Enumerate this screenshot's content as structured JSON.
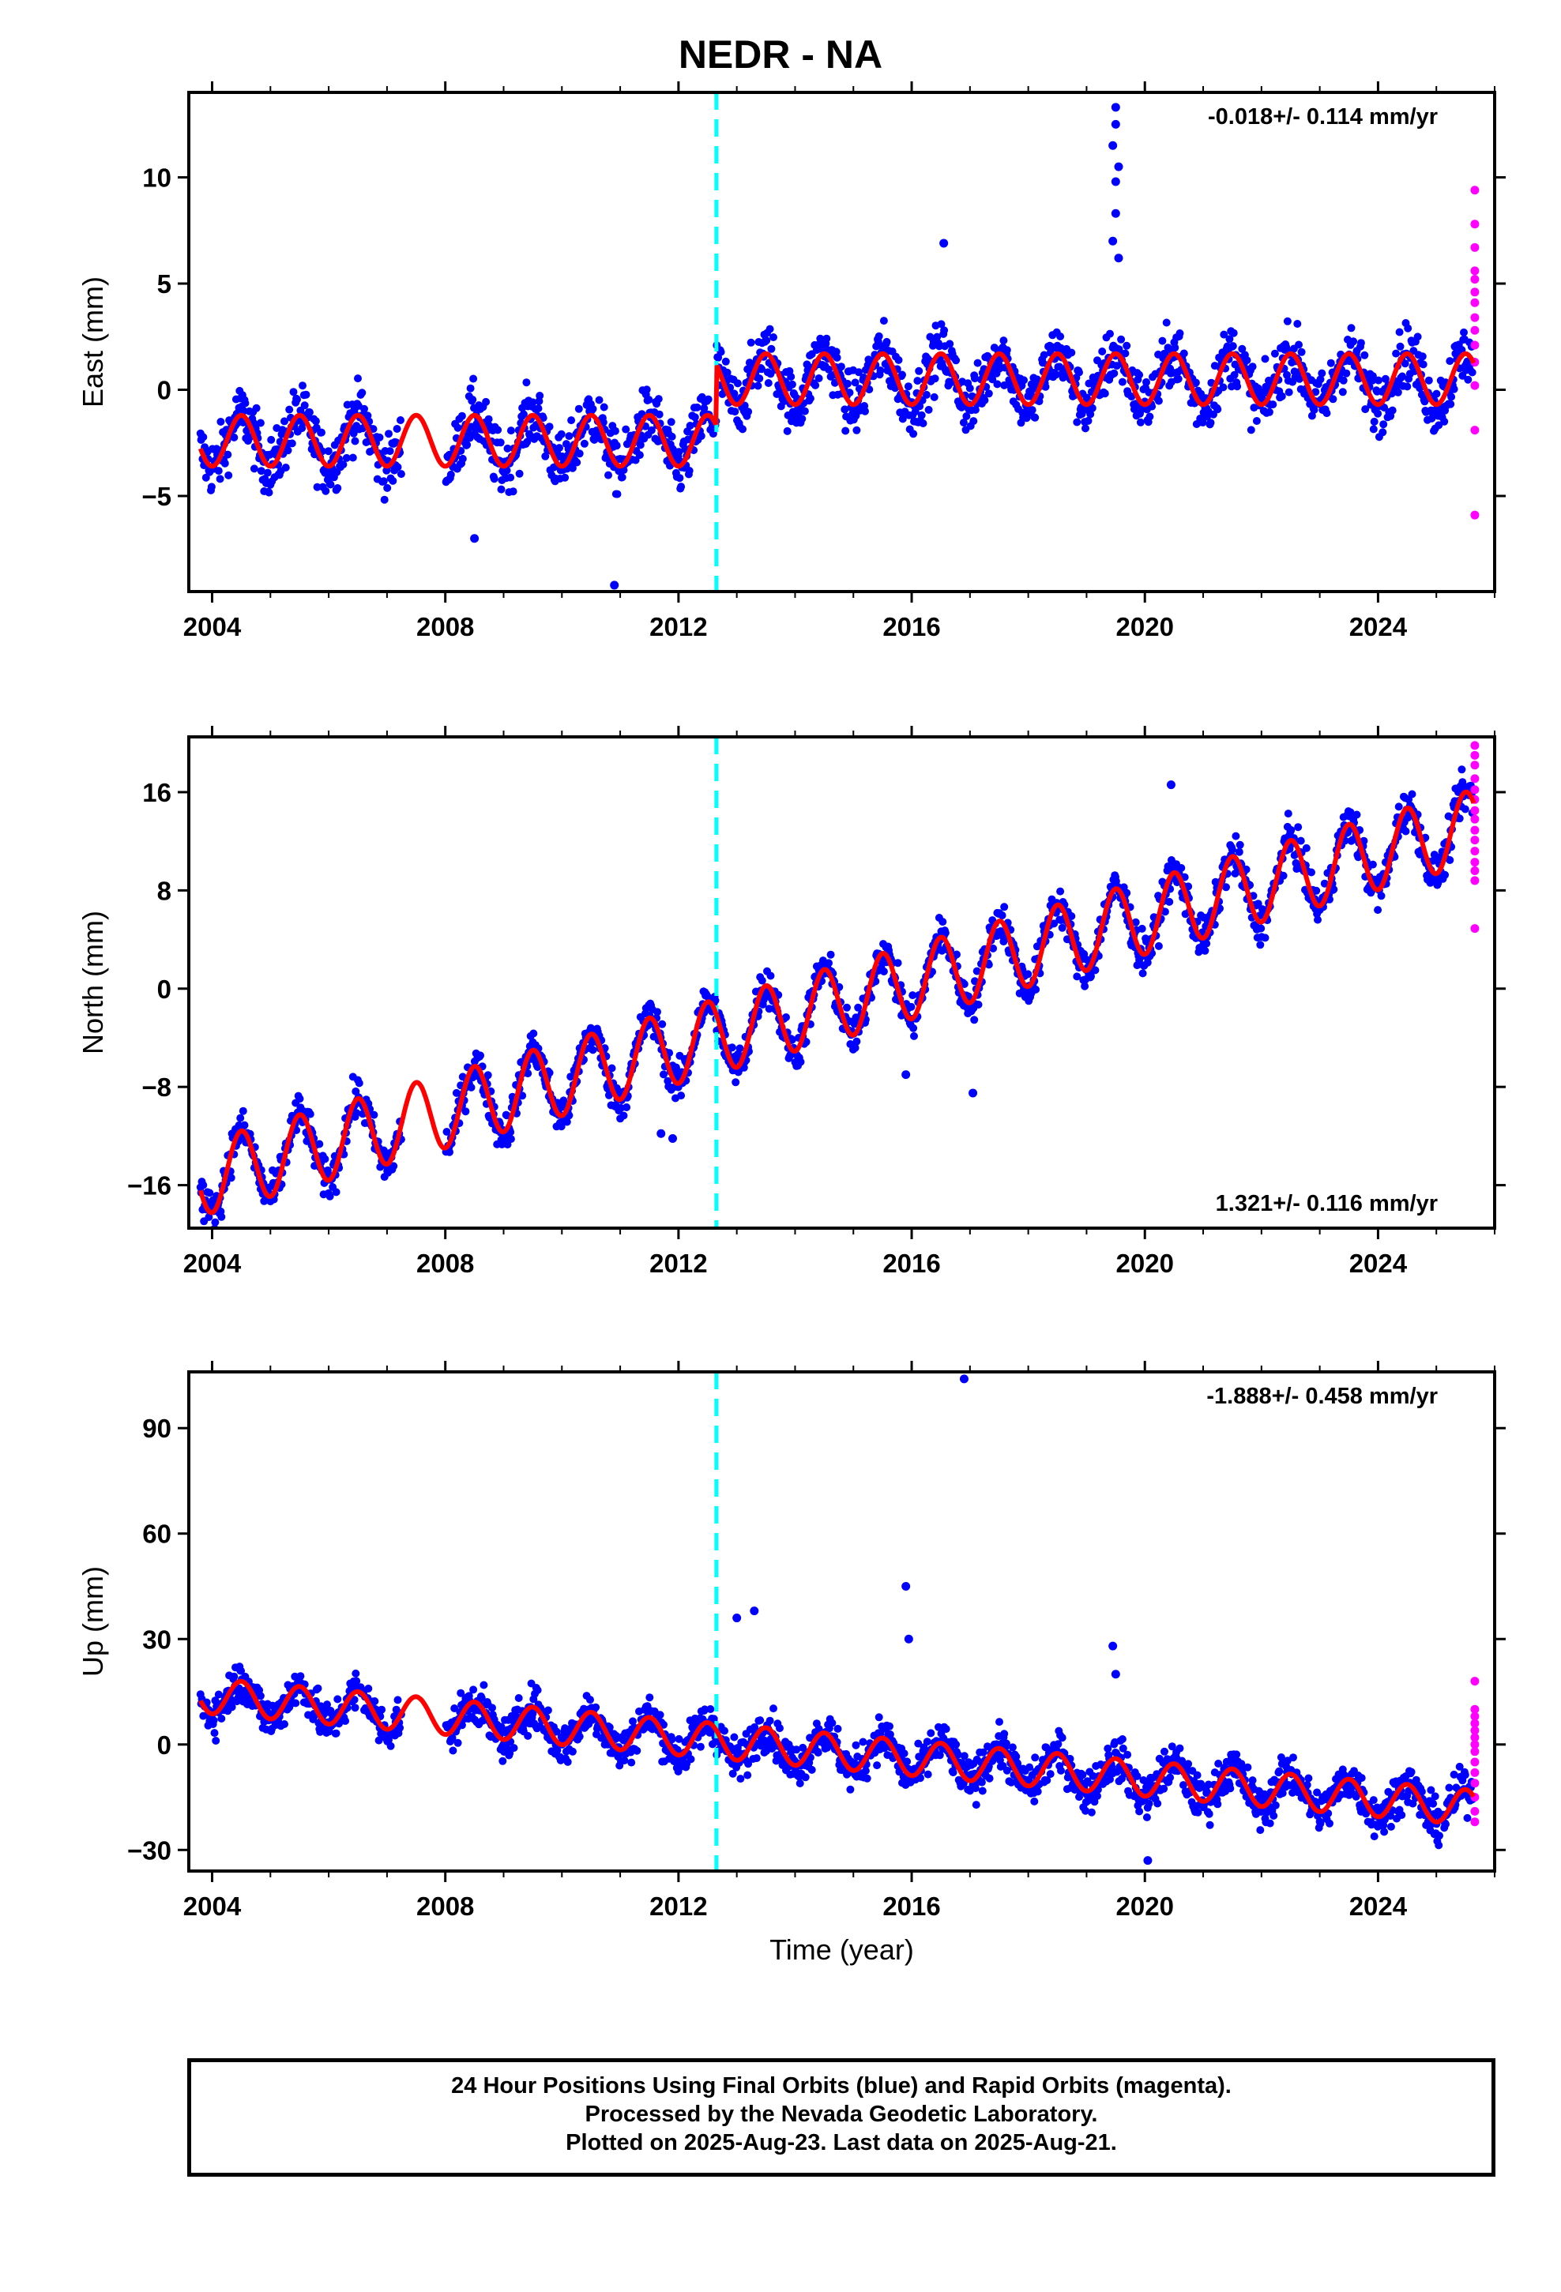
{
  "title": "NEDR - NA",
  "footer": {
    "line1": "24 Hour Positions Using Final Orbits (blue) and Rapid Orbits (magenta).",
    "line2": "Processed by the Nevada Geodetic Laboratory.",
    "line3": "Plotted on 2025-Aug-23. Last data on 2025-Aug-21."
  },
  "colors": {
    "final_orbits": "#0000ff",
    "rapid_orbits": "#ff00ff",
    "model_fit": "#ff0000",
    "offset_marker": "#00ffff"
  },
  "chart_data": [
    {
      "type": "scatter",
      "component": "east",
      "ylabel": "East (mm)",
      "xlabel": "",
      "xlim": [
        2003.6,
        2026.0
      ],
      "ylim": [
        -9.5,
        14.0
      ],
      "x_ticks": [
        2004,
        2008,
        2012,
        2016,
        2020,
        2024
      ],
      "y_ticks": [
        -5,
        0,
        5,
        10
      ],
      "rate_text": "-0.018+/- 0.114 mm/yr",
      "rate_position": "top-right",
      "offset_epoch": 2012.65,
      "data_span": [
        2003.8,
        2025.64
      ],
      "gap": [
        2007.25,
        2008.0
      ],
      "model": {
        "seg1_level": -2.0,
        "seg2_level": 0.9,
        "annual_amplitude": 1.2,
        "scatter": 1.3,
        "rate": -0.018
      },
      "series": [
        {
          "name": "Final Orbits",
          "color": "#0000ff"
        },
        {
          "name": "Rapid Orbits",
          "color": "#ff00ff",
          "values": [
            9.4,
            7.8,
            6.7,
            5.6,
            5.2,
            4.6,
            4.1,
            3.4,
            2.8,
            2.1,
            1.3,
            0.2,
            -1.9,
            -5.9
          ]
        },
        {
          "name": "Model",
          "color": "#ff0000"
        }
      ],
      "outliers": [
        {
          "x": 2010.9,
          "y": -9.2
        },
        {
          "x": 2019.5,
          "y": 13.3
        },
        {
          "x": 2019.5,
          "y": 12.5
        },
        {
          "x": 2019.45,
          "y": 11.5
        },
        {
          "x": 2019.55,
          "y": 10.5
        },
        {
          "x": 2019.5,
          "y": 9.8
        },
        {
          "x": 2019.5,
          "y": 8.3
        },
        {
          "x": 2019.45,
          "y": 7.0
        },
        {
          "x": 2019.55,
          "y": 6.2
        },
        {
          "x": 2016.55,
          "y": 6.9
        },
        {
          "x": 2008.5,
          "y": -7.0
        }
      ]
    },
    {
      "type": "scatter",
      "component": "north",
      "ylabel": "North (mm)",
      "xlabel": "",
      "xlim": [
        2003.6,
        2026.0
      ],
      "ylim": [
        -19.5,
        20.5
      ],
      "x_ticks": [
        2004,
        2008,
        2012,
        2016,
        2020,
        2024
      ],
      "y_ticks": [
        -16,
        -8,
        0,
        8,
        16
      ],
      "rate_text": "1.321+/- 0.116 mm/yr",
      "rate_position": "bottom-right",
      "offset_epoch": 2012.65,
      "data_span": [
        2003.8,
        2025.64
      ],
      "gap": [
        2007.25,
        2008.0
      ],
      "model": {
        "start_value": -15.5,
        "end_value": 13.2,
        "annual_amplitude": 3.0,
        "scatter": 1.5,
        "rate": 1.321
      },
      "series": [
        {
          "name": "Final Orbits",
          "color": "#0000ff"
        },
        {
          "name": "Rapid Orbits",
          "color": "#ff00ff",
          "values": [
            19.8,
            19.0,
            18.2,
            17.1,
            16.2,
            15.4,
            14.5,
            13.8,
            12.9,
            12.1,
            11.2,
            10.3,
            9.6,
            8.8,
            4.9
          ]
        },
        {
          "name": "Model",
          "color": "#ff0000"
        }
      ],
      "outliers": [
        {
          "x": 2011.9,
          "y": -12.2
        },
        {
          "x": 2011.7,
          "y": -11.8
        },
        {
          "x": 2015.9,
          "y": -7.0
        },
        {
          "x": 2017.05,
          "y": -8.5
        },
        {
          "x": 2020.45,
          "y": 16.6
        }
      ]
    },
    {
      "type": "scatter",
      "component": "up",
      "ylabel": "Up (mm)",
      "xlabel": "Time (year)",
      "xlim": [
        2003.6,
        2026.0
      ],
      "ylim": [
        -36.0,
        106.0
      ],
      "x_ticks": [
        2004,
        2008,
        2012,
        2016,
        2020,
        2024
      ],
      "y_ticks": [
        -30,
        0,
        30,
        60,
        90
      ],
      "rate_text": "-1.888+/- 0.458 mm/yr",
      "rate_position": "top-right",
      "offset_epoch": 2012.65,
      "data_span": [
        2003.8,
        2025.64
      ],
      "gap": [
        2007.25,
        2008.0
      ],
      "model": {
        "start_value": 14.0,
        "end_value": -18.0,
        "annual_amplitude": 5.0,
        "scatter": 5.5,
        "rate": -1.888
      },
      "series": [
        {
          "name": "Final Orbits",
          "color": "#0000ff"
        },
        {
          "name": "Rapid Orbits",
          "color": "#ff00ff",
          "values": [
            18.0,
            10.0,
            8.0,
            6.0,
            4.0,
            2.0,
            0.0,
            -2.0,
            -5.0,
            -8.0,
            -11.0,
            -15.0,
            -19.0,
            -22.0
          ]
        },
        {
          "name": "Model",
          "color": "#ff0000"
        }
      ],
      "outliers": [
        {
          "x": 2016.9,
          "y": 104.0
        },
        {
          "x": 2015.9,
          "y": 45.0
        },
        {
          "x": 2015.95,
          "y": 30.0
        },
        {
          "x": 2013.3,
          "y": 38.0
        },
        {
          "x": 2013.0,
          "y": 36.0
        },
        {
          "x": 2019.45,
          "y": 28.0
        },
        {
          "x": 2019.5,
          "y": 20.0
        },
        {
          "x": 2020.05,
          "y": -33.0
        }
      ]
    }
  ]
}
